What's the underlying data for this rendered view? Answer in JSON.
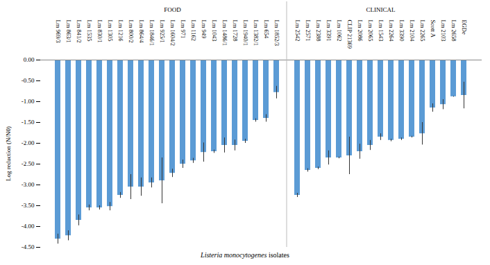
{
  "chart_data": {
    "type": "bar",
    "y_label": "Log reduction (N/N0)",
    "x_label": "Listeria monocytogenes isolates",
    "color": "#5b9bd5",
    "ylim": [
      -4.5,
      0
    ],
    "yticks": [
      {
        "value": -4.5,
        "label": "-4.50"
      },
      {
        "value": -4,
        "label": "-4.00"
      },
      {
        "value": -3.5,
        "label": "-3.50"
      },
      {
        "value": -3,
        "label": "-3.00"
      },
      {
        "value": -2.5,
        "label": "-2.50"
      },
      {
        "value": -2,
        "label": "-2.00"
      },
      {
        "value": -1.5,
        "label": "-1.50"
      },
      {
        "value": -1,
        "label": "-1.00"
      },
      {
        "value": -0.5,
        "label": "-0.50"
      },
      {
        "value": 0,
        "label": "0.00"
      }
    ],
    "grid": false,
    "groups": [
      {
        "name": "FOOD",
        "categories": [
          "Lm 969/3",
          "Lm 863/1",
          "Lm 841/2",
          "Lm 1535",
          "Lm 830/1",
          "Lm 1305",
          "Lm 1216",
          "Lm 800/2",
          "Lm 864/4",
          "Lm 1846/1",
          "Lm 925/1",
          "Lm 1604/2",
          "Lm 971",
          "Lm 1162",
          "Lm 949",
          "Lm 1043",
          "Lm 1486/1",
          "Lm 1728",
          "Lm 1940/1",
          "Lm 1382/1",
          "Lm 654",
          "Lm 1852/3"
        ],
        "values": [
          -4.3,
          -4.22,
          -3.85,
          -3.55,
          -3.55,
          -3.52,
          -3.25,
          -3.05,
          -3.05,
          -2.95,
          -2.9,
          -2.72,
          -2.5,
          -2.42,
          -2.22,
          -2.2,
          -2.05,
          -2.05,
          -1.95,
          -1.45,
          -1.4,
          -0.78
        ],
        "errors": [
          0.12,
          0.12,
          0.13,
          0.07,
          0.05,
          0.1,
          0.07,
          0.3,
          0.22,
          0.12,
          0.55,
          0.1,
          0.1,
          0.06,
          0.23,
          0.04,
          0.18,
          0.13,
          0.05,
          0.04,
          0.09,
          0.15
        ]
      },
      {
        "name": "CLINICAL",
        "categories": [
          "Lm 2542",
          "Lm 2571",
          "Lm 2388",
          "Lm 3391",
          "Lm 1062",
          "CLIP 21369",
          "Lm 2086",
          "Lm 2065",
          "Lm 1543",
          "Lm 2264",
          "Lm 3390",
          "Lm 2104",
          "Lm 2265",
          "Scott A",
          "Lm 2103",
          "Lm 2658",
          "EGDe"
        ],
        "values": [
          -3.25,
          -2.65,
          -2.6,
          -2.35,
          -2.35,
          -2.3,
          -2.2,
          -2.05,
          -1.85,
          -1.93,
          -1.9,
          -1.85,
          -1.77,
          -1.15,
          -1.07,
          -0.88,
          -0.85
        ],
        "errors": [
          0.05,
          0.04,
          0.03,
          0.17,
          0.02,
          0.45,
          0.18,
          0.12,
          0.08,
          0.03,
          0.03,
          0.02,
          0.27,
          0.1,
          0.12,
          0.01,
          0.32
        ]
      }
    ]
  }
}
